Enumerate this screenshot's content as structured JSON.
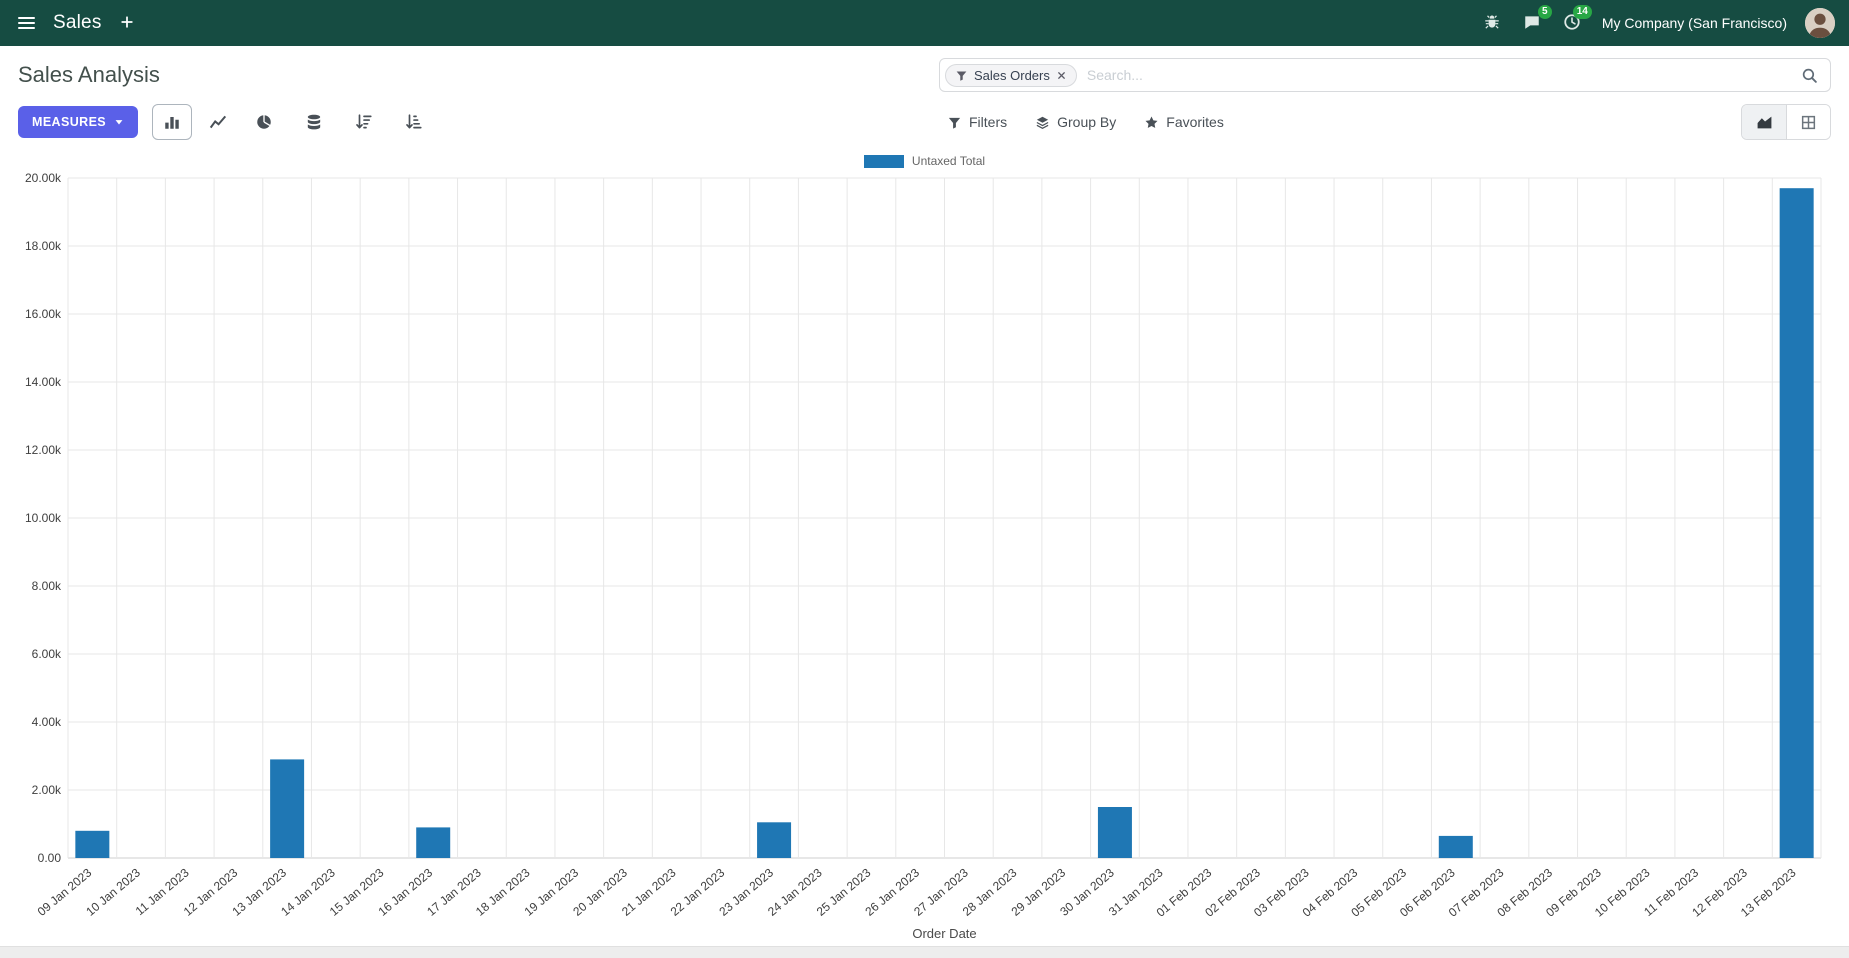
{
  "colors": {
    "navbar_bg": "#164c42",
    "primary": "#5a60e8",
    "bar": "#1f77b4",
    "badge": "#28a745"
  },
  "nav": {
    "app_name": "Sales",
    "messages_badge": "5",
    "activities_badge": "14",
    "company": "My Company (San Francisco)"
  },
  "control_panel": {
    "title": "Sales Analysis",
    "search": {
      "facet": "Sales Orders",
      "placeholder": "Search..."
    },
    "measures_label": "MEASURES",
    "buttons": {
      "filters": "Filters",
      "group_by": "Group By",
      "favorites": "Favorites"
    }
  },
  "chart_data": {
    "type": "bar",
    "title": "",
    "xlabel": "Order Date",
    "ylabel": "",
    "ylim": [
      0,
      20000
    ],
    "y_tick_step": 2000,
    "y_tick_labels": [
      "0.00",
      "2.00k",
      "4.00k",
      "6.00k",
      "8.00k",
      "10.00k",
      "12.00k",
      "14.00k",
      "16.00k",
      "18.00k",
      "20.00k"
    ],
    "grid": true,
    "legend_position": "top",
    "categories": [
      "09 Jan 2023",
      "10 Jan 2023",
      "11 Jan 2023",
      "12 Jan 2023",
      "13 Jan 2023",
      "14 Jan 2023",
      "15 Jan 2023",
      "16 Jan 2023",
      "17 Jan 2023",
      "18 Jan 2023",
      "19 Jan 2023",
      "20 Jan 2023",
      "21 Jan 2023",
      "22 Jan 2023",
      "23 Jan 2023",
      "24 Jan 2023",
      "25 Jan 2023",
      "26 Jan 2023",
      "27 Jan 2023",
      "28 Jan 2023",
      "29 Jan 2023",
      "30 Jan 2023",
      "31 Jan 2023",
      "01 Feb 2023",
      "02 Feb 2023",
      "03 Feb 2023",
      "04 Feb 2023",
      "05 Feb 2023",
      "06 Feb 2023",
      "07 Feb 2023",
      "08 Feb 2023",
      "09 Feb 2023",
      "10 Feb 2023",
      "11 Feb 2023",
      "12 Feb 2023",
      "13 Feb 2023"
    ],
    "series": [
      {
        "name": "Untaxed Total",
        "color": "#1f77b4",
        "values": [
          800,
          0,
          0,
          0,
          2900,
          0,
          0,
          900,
          0,
          0,
          0,
          0,
          0,
          0,
          1050,
          0,
          0,
          0,
          0,
          0,
          0,
          1500,
          0,
          0,
          0,
          0,
          0,
          0,
          650,
          0,
          0,
          0,
          0,
          0,
          0,
          19700
        ]
      }
    ]
  }
}
